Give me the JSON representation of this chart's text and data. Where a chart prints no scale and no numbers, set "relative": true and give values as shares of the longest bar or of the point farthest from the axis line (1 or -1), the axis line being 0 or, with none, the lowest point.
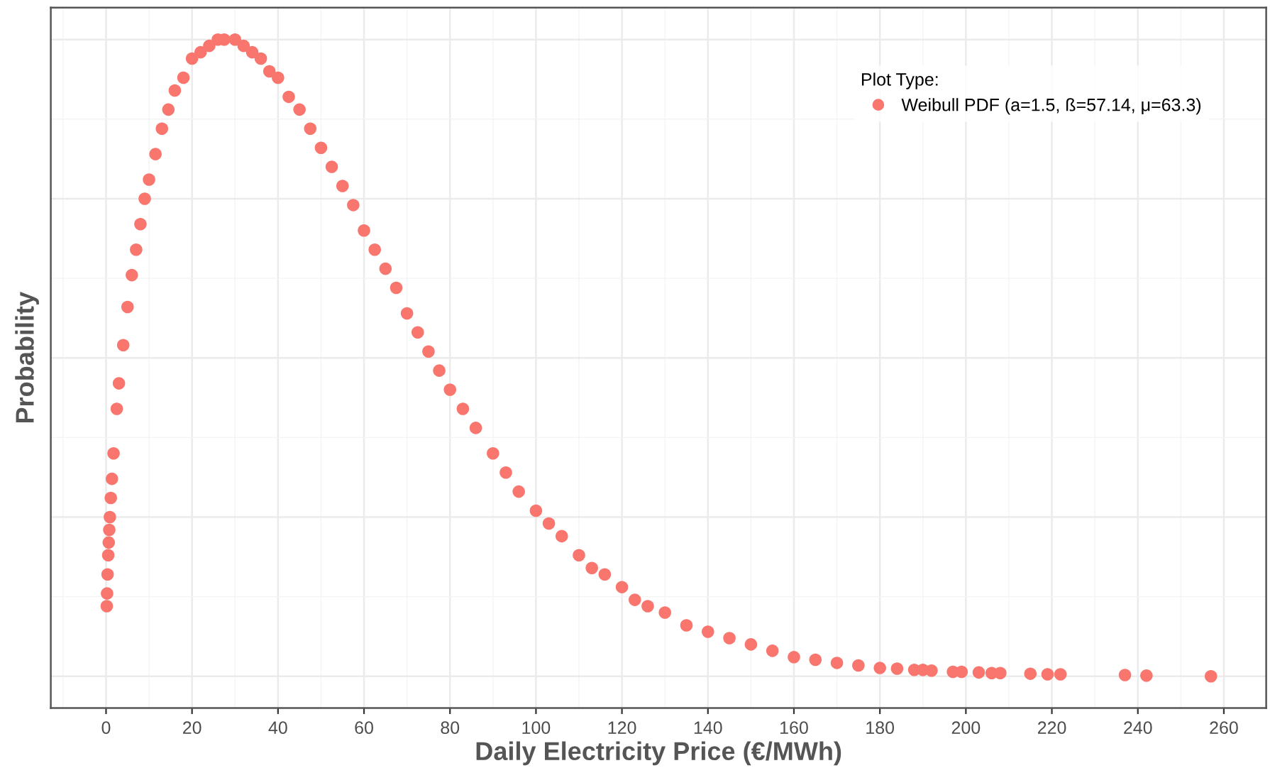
{
  "chart_data": {
    "type": "scatter",
    "relative": true,
    "xlabel": "Daily Electricity Price (€/MWh)",
    "ylabel": "Probability",
    "legend_title": "Plot Type:",
    "xlim": [
      -12.85,
      269.85
    ],
    "xticks": [
      0,
      20,
      40,
      60,
      80,
      100,
      120,
      140,
      160,
      180,
      200,
      220,
      240,
      260
    ],
    "grid": true,
    "legend": "top right",
    "marker": "circle",
    "series": [
      {
        "name": "Weibull PDF (a=1.5, ß=57.14, μ=63.3)",
        "color": "#f8766d",
        "x": [
          0.17,
          0.24,
          0.36,
          0.51,
          0.63,
          0.75,
          0.89,
          1.11,
          1.37,
          1.75,
          2.5,
          3,
          4,
          5,
          6,
          7,
          8,
          9,
          10,
          11.5,
          13,
          14.5,
          16,
          18,
          20,
          22,
          24,
          26,
          27.5,
          30,
          32,
          34,
          36,
          38,
          40,
          42.5,
          45,
          47.5,
          50,
          52.5,
          55,
          57.5,
          60,
          62.5,
          65,
          67.5,
          70,
          72.5,
          75,
          77.5,
          80,
          83,
          86,
          90,
          93,
          96,
          100,
          103,
          106,
          110,
          113,
          116,
          120,
          123,
          126,
          130,
          135,
          140,
          145,
          150,
          155,
          160,
          165,
          170,
          175,
          180,
          184,
          188,
          190,
          192,
          197,
          199,
          203,
          206,
          208,
          215,
          219,
          222,
          237,
          242,
          257
        ],
        "values": [
          0.11,
          0.13,
          0.16,
          0.19,
          0.21,
          0.23,
          0.25,
          0.28,
          0.31,
          0.35,
          0.42,
          0.46,
          0.52,
          0.58,
          0.63,
          0.67,
          0.71,
          0.75,
          0.78,
          0.82,
          0.86,
          0.89,
          0.92,
          0.94,
          0.97,
          0.98,
          0.99,
          1.0,
          1.0,
          1.0,
          0.99,
          0.98,
          0.97,
          0.95,
          0.94,
          0.91,
          0.89,
          0.86,
          0.83,
          0.8,
          0.77,
          0.74,
          0.7,
          0.67,
          0.64,
          0.61,
          0.57,
          0.54,
          0.51,
          0.48,
          0.45,
          0.42,
          0.39,
          0.35,
          0.32,
          0.29,
          0.26,
          0.24,
          0.22,
          0.19,
          0.17,
          0.16,
          0.14,
          0.12,
          0.11,
          0.1,
          0.08,
          0.07,
          0.06,
          0.05,
          0.04,
          0.03,
          0.026,
          0.021,
          0.017,
          0.013,
          0.012,
          0.01,
          0.01,
          0.009,
          0.007,
          0.007,
          0.006,
          0.005,
          0.005,
          0.004,
          0.003,
          0.003,
          0.002,
          0.001,
          0.0
        ]
      }
    ]
  }
}
